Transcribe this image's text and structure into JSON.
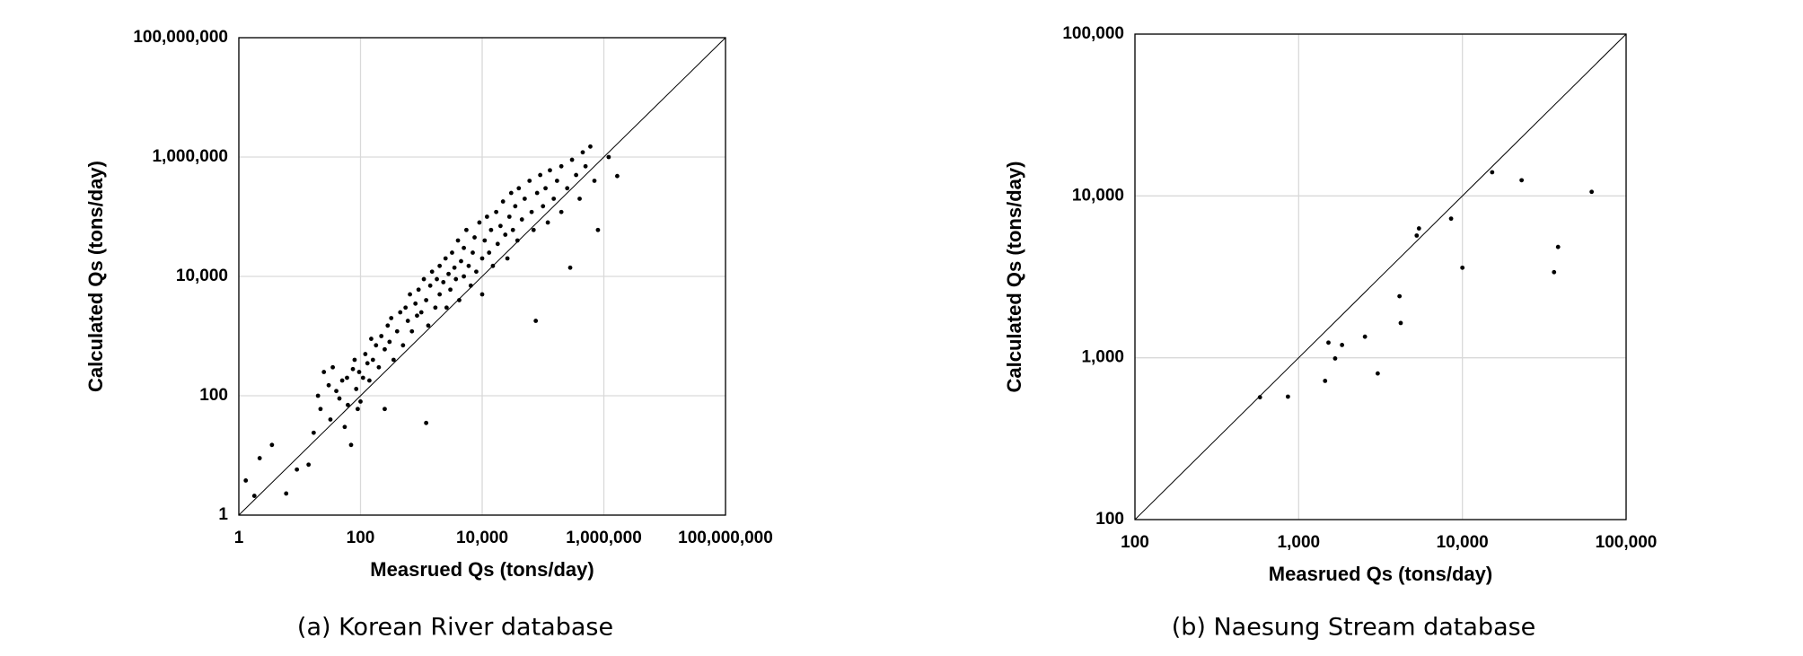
{
  "chart_data": [
    {
      "type": "scatter",
      "caption": "(a) Korean River database",
      "xlabel": "Measrued Qs (tons/day)",
      "ylabel": "Calculated Qs (tons/day)",
      "log": true,
      "grid": true,
      "color": "#000000",
      "xlim": [
        1,
        100000000
      ],
      "ylim": [
        1,
        100000000
      ],
      "xticks": [
        1,
        100,
        {
          "value": 10000,
          "label": "10,000"
        },
        {
          "value": 1000000,
          "label": "1,000,000"
        },
        {
          "value": 100000000,
          "label": "100,000,000"
        }
      ],
      "yticks": [
        1,
        100,
        {
          "value": 10000,
          "label": "10,000"
        },
        {
          "value": 1000000,
          "label": "1,000,000"
        },
        {
          "value": 100000000,
          "label": "100,000,000"
        }
      ],
      "x": [
        1.3,
        1.8,
        2.2,
        3.5,
        6,
        9,
        14,
        17,
        20,
        22,
        25,
        30,
        32,
        35,
        40,
        45,
        50,
        55,
        60,
        62,
        70,
        75,
        80,
        85,
        90,
        95,
        100,
        110,
        120,
        130,
        140,
        150,
        160,
        180,
        200,
        220,
        250,
        250,
        280,
        300,
        320,
        350,
        400,
        450,
        500,
        550,
        600,
        650,
        700,
        800,
        850,
        900,
        1000,
        1100,
        1200,
        1200,
        1300,
        1400,
        1500,
        1700,
        1800,
        2000,
        2000,
        2300,
        2500,
        2600,
        2800,
        3000,
        3200,
        3500,
        3700,
        4000,
        4200,
        4500,
        5000,
        5000,
        5500,
        6000,
        6500,
        7000,
        7500,
        8000,
        9000,
        10000,
        10000,
        11000,
        12000,
        13000,
        14000,
        15000,
        17000,
        18000,
        20000,
        22000,
        24000,
        26000,
        28000,
        30000,
        32000,
        35000,
        38000,
        40000,
        45000,
        50000,
        76000,
        60000,
        65000,
        70000,
        80000,
        90000,
        100000,
        110000,
        120000,
        130000,
        150000,
        170000,
        200000,
        200000,
        250000,
        280000,
        300000,
        350000,
        400000,
        450000,
        500000,
        600000,
        700000,
        800000,
        1200000,
        1660000
      ],
      "values": [
        3.8,
        2.1,
        9,
        15,
        2.3,
        5.8,
        7,
        24,
        100,
        60,
        250,
        150,
        40,
        300,
        120,
        90,
        180,
        30,
        200,
        70,
        15,
        280,
        400,
        130,
        60,
        250,
        80,
        200,
        500,
        350,
        180,
        900,
        400,
        700,
        300,
        1000,
        600,
        60,
        1500,
        800,
        2000,
        400,
        1200,
        2500,
        700,
        3000,
        1800,
        5000,
        1200,
        3500,
        2200,
        6000,
        2500,
        9000,
        4000,
        35,
        1500,
        7000,
        12000,
        3000,
        9000,
        15000,
        5000,
        8000,
        20000,
        3000,
        11000,
        6000,
        25000,
        14000,
        9000,
        40000,
        4000,
        18000,
        10000,
        30000,
        60000,
        15000,
        7000,
        25000,
        45000,
        12000,
        80000,
        20000,
        5000,
        40000,
        100000,
        25000,
        60000,
        15000,
        120000,
        35000,
        70000,
        180000,
        50000,
        20000,
        100000,
        250000,
        60000,
        150000,
        40000,
        300000,
        90000,
        200000,
        1800,
        400000,
        120000,
        60000,
        250000,
        500000,
        150000,
        300000,
        80000,
        600000,
        200000,
        400000,
        120000,
        700000,
        300000,
        14000,
        900000,
        500000,
        200000,
        1200000,
        700000,
        1500000,
        400000,
        60000,
        1000000,
        480000
      ]
    },
    {
      "type": "scatter",
      "caption": "(b) Naesung Stream database",
      "xlabel": "Measrued Qs (tons/day)",
      "ylabel": "Calculated Qs (tons/day)",
      "log": true,
      "grid": true,
      "color": "#000000",
      "xlim": [
        100,
        100000
      ],
      "ylim": [
        100,
        100000
      ],
      "xticks": [
        100,
        {
          "value": 1000,
          "label": "1,000"
        },
        {
          "value": 10000,
          "label": "10,000"
        },
        {
          "value": 100000,
          "label": "100,000"
        }
      ],
      "yticks": [
        100,
        {
          "value": 1000,
          "label": "1,000"
        },
        {
          "value": 10000,
          "label": "10,000"
        },
        {
          "value": 100000,
          "label": "100,000"
        }
      ],
      "x": [
        580,
        860,
        1450,
        1520,
        1670,
        1840,
        2540,
        3040,
        4130,
        4200,
        5260,
        5430,
        8530,
        10000,
        15200,
        23000,
        36300,
        38400,
        61600
      ],
      "values": [
        570,
        575,
        720,
        1240,
        990,
        1200,
        1350,
        800,
        2400,
        1640,
        5690,
        6300,
        7240,
        3600,
        14000,
        12500,
        3380,
        4840,
        10600
      ]
    }
  ]
}
